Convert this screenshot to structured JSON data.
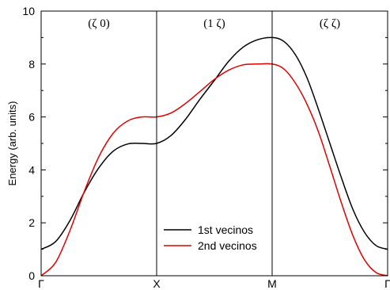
{
  "chart_data": {
    "type": "line",
    "ylabel": "Energy (arb. units)",
    "ylim": [
      0,
      10
    ],
    "yticks": [
      "0",
      "2",
      "4",
      "6",
      "8",
      "10"
    ],
    "xticks": [
      "Γ",
      "X",
      "M",
      "Γ"
    ],
    "segments": [
      "(ζ 0)",
      "(1 ζ)",
      "(ζ ζ)"
    ],
    "grid": false,
    "legend_position": "lower-center",
    "series": [
      {
        "name": "1st vecinos",
        "color": "#000000",
        "x": [
          0,
          0.125,
          0.25,
          0.375,
          0.5,
          0.625,
          0.75,
          0.875,
          1,
          1.125,
          1.25,
          1.375,
          1.5,
          1.625,
          1.75,
          1.875,
          2,
          2.1,
          2.2,
          2.3,
          2.4,
          2.5,
          2.6,
          2.7,
          2.8,
          2.9,
          3
        ],
        "values": [
          1.0,
          1.29,
          2.09,
          3.17,
          4.08,
          4.71,
          4.98,
          5.0,
          5.0,
          5.3,
          5.91,
          6.67,
          7.38,
          8.11,
          8.64,
          8.92,
          9.0,
          8.86,
          8.36,
          7.5,
          6.3,
          5.0,
          3.7,
          2.5,
          1.64,
          1.14,
          1.0
        ]
      },
      {
        "name": "2nd vecinos",
        "color": "#e00000",
        "x": [
          0,
          0.125,
          0.25,
          0.375,
          0.5,
          0.625,
          0.75,
          0.875,
          1,
          1.125,
          1.25,
          1.375,
          1.5,
          1.625,
          1.75,
          1.875,
          2,
          2.1,
          2.2,
          2.3,
          2.4,
          2.5,
          2.6,
          2.7,
          2.8,
          2.9,
          3
        ],
        "values": [
          0.0,
          0.5,
          1.71,
          3.2,
          4.5,
          5.39,
          5.85,
          6.0,
          6.0,
          6.15,
          6.51,
          6.96,
          7.42,
          7.77,
          7.97,
          8.0,
          8.0,
          7.82,
          7.29,
          6.5,
          5.45,
          4.12,
          2.75,
          1.51,
          0.6,
          0.12,
          0.0
        ]
      }
    ]
  }
}
